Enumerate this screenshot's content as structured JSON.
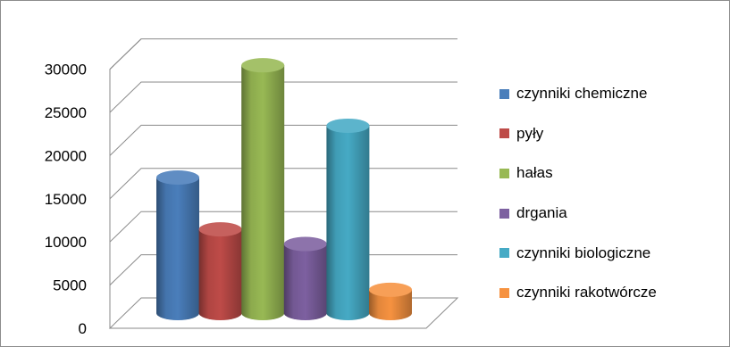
{
  "chart_data": {
    "type": "bar",
    "style": "3d-cylinder",
    "title": "",
    "xlabel": "",
    "ylabel": "",
    "ylim": [
      0,
      30000
    ],
    "y_ticks": [
      "0",
      "5000",
      "10000",
      "15000",
      "20000",
      "25000",
      "30000"
    ],
    "grid": true,
    "legend_position": "right",
    "series": [
      {
        "name": "czynniki chemiczne",
        "value": 15700,
        "color": "#4a7ebb"
      },
      {
        "name": "pyły",
        "value": 9700,
        "color": "#be4b48"
      },
      {
        "name": "hałas",
        "value": 28700,
        "color": "#98b954"
      },
      {
        "name": "drgania",
        "value": 8000,
        "color": "#7d60a0"
      },
      {
        "name": "czynniki biologiczne",
        "value": 21700,
        "color": "#46aac5"
      },
      {
        "name": "czynniki rakotwórcze",
        "value": 2700,
        "color": "#f69240"
      }
    ]
  }
}
